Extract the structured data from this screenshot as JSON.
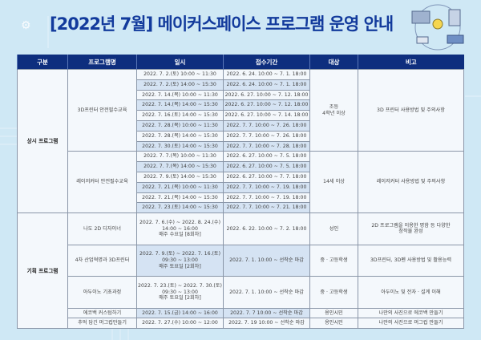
{
  "title": "[2022년 7월] 메이커스페이스 프로그램 운영 안내",
  "colors": {
    "header_bg": "#0e2e7e",
    "title": "#123a9c",
    "shade": "#d5e3f3",
    "background": "#cfe8f5"
  },
  "icons": [
    "gear-icon",
    "maker-illustration"
  ],
  "table": {
    "headers": [
      "구분",
      "프로그램명",
      "일시",
      "접수기간",
      "대상",
      "비고"
    ],
    "groups": [
      {
        "category": "상시 프로그램",
        "programs": [
          {
            "name": "3D프린터 안전필수교육",
            "target": "조등\n4학년 이상",
            "note": "3D 프린터 사용방법 및 주의사항",
            "sessions": [
              {
                "date": "2022. 7. 2.(토) 10:00 ~ 11:30",
                "period": "2022. 6. 24. 10:00 ~ 7. 1. 18:00"
              },
              {
                "date": "2022. 7. 2.(토) 14:00 ~ 15:30",
                "period": "2022. 6. 24. 10:00 ~ 7. 1. 18:00"
              },
              {
                "date": "2022. 7. 14.(목) 10:00 ~ 11:30",
                "period": "2022. 6. 27. 10:00 ~ 7. 12. 18:00"
              },
              {
                "date": "2022. 7. 14.(목) 14:00 ~ 15:30",
                "period": "2022. 6. 27. 10:00 ~ 7. 12. 18:00"
              },
              {
                "date": "2022. 7. 16.(토) 14:00 ~ 15:30",
                "period": "2022. 6. 27. 10:00 ~ 7. 14. 18:00"
              },
              {
                "date": "2022. 7. 28.(목) 10:00 ~ 11:30",
                "period": "2022. 7. 7. 10:00 ~ 7. 26. 18:00"
              },
              {
                "date": "2022. 7. 28.(목) 14:00 ~ 15:30",
                "period": "2022. 7. 7. 10:00 ~ 7. 26. 18:00"
              },
              {
                "date": "2022. 7. 30.(토) 14:00 ~ 15:30",
                "period": "2022. 7. 7. 10:00 ~ 7. 28. 18:00"
              }
            ]
          },
          {
            "name": "레이저커터 안전필수교육",
            "target": "14세 이상",
            "note": "레이저커터 사용방법 및 주의사항",
            "sessions": [
              {
                "date": "2022. 7. 7.(목) 10:00 ~ 11:30",
                "period": "2022. 6. 27. 10:00 ~ 7. 5. 18:00"
              },
              {
                "date": "2022. 7. 7.(목) 14:00 ~ 15:30",
                "period": "2022. 6. 27. 10:00 ~ 7. 5. 18:00"
              },
              {
                "date": "2022. 7. 9.(토) 14:00 ~ 15:30",
                "period": "2022. 6. 27. 10:00 ~ 7. 7. 18:00"
              },
              {
                "date": "2022. 7. 21.(목) 10:00 ~ 11:30",
                "period": "2022. 7. 7. 10:00 ~ 7. 19. 18:00"
              },
              {
                "date": "2022. 7. 21.(목) 14:00 ~ 15:30",
                "period": "2022. 7. 7. 10:00 ~ 7. 19. 18:00"
              },
              {
                "date": "2022. 7. 23.(토) 14:00 ~ 15:30",
                "period": "2022. 7. 7. 10:00 ~ 7. 21. 18:00"
              }
            ]
          }
        ]
      },
      {
        "category": "기획 프로그램",
        "programs": [
          {
            "name": "나도 2D 디자이너",
            "date": "2022. 7. 6.(수) ~ 2022. 8. 24.(수)\n14:00 ~ 16:00\n매주 수요일 [8회차]",
            "period": "2022. 6. 22. 10:00 ~ 7. 2. 18:00",
            "target": "성인",
            "note": "2D 프로그램을 이용한 명함 등 다양한\n창작물 완성",
            "big": true,
            "shade": false
          },
          {
            "name": "4차 산업혁명과 3D프린터",
            "date": "2022. 7. 9.(토) ~ 2022. 7. 16.(토)\n09:30 ~ 13:00\n매주 토요일 [2회차]",
            "period": "2022. 7. 1. 10:00 ~ 선착순 마감",
            "target": "중 · 고등학생",
            "note": "3D프린터, 3D펜 사용방법 및 활용능력",
            "big": true,
            "shade": true
          },
          {
            "name": "아두이노 기초과정",
            "date": "2022. 7. 23.(토) ~ 2022. 7. 30.(토)\n09:30 ~ 13:00\n매주 토요일 [2회차]",
            "period": "2022. 7. 1. 10:00 ~ 선착순 마감",
            "target": "중 · 고등학생",
            "note": "아두이노 및 전자 · 설계 이해",
            "big": true,
            "shade": false
          },
          {
            "name": "에코백 커스텀하기",
            "date": "2022. 7. 15.(금) 14:00 ~ 16:00",
            "period": "2022. 7. 7 10:00 ~ 선착순 마감",
            "target": "용인시민",
            "note": "나만의 사진으로 에코백 만들기",
            "big": false,
            "shade": true
          },
          {
            "name": "추억 담긴 머그컵만들기",
            "date": "2022. 7. 27.(수) 10:00 ~ 12:00",
            "period": "2022. 7. 19 10:00 ~ 선착순 마감",
            "target": "용인시민",
            "note": "나만의 사진으로 머그컵 만들기",
            "big": false,
            "shade": false
          }
        ]
      }
    ]
  }
}
